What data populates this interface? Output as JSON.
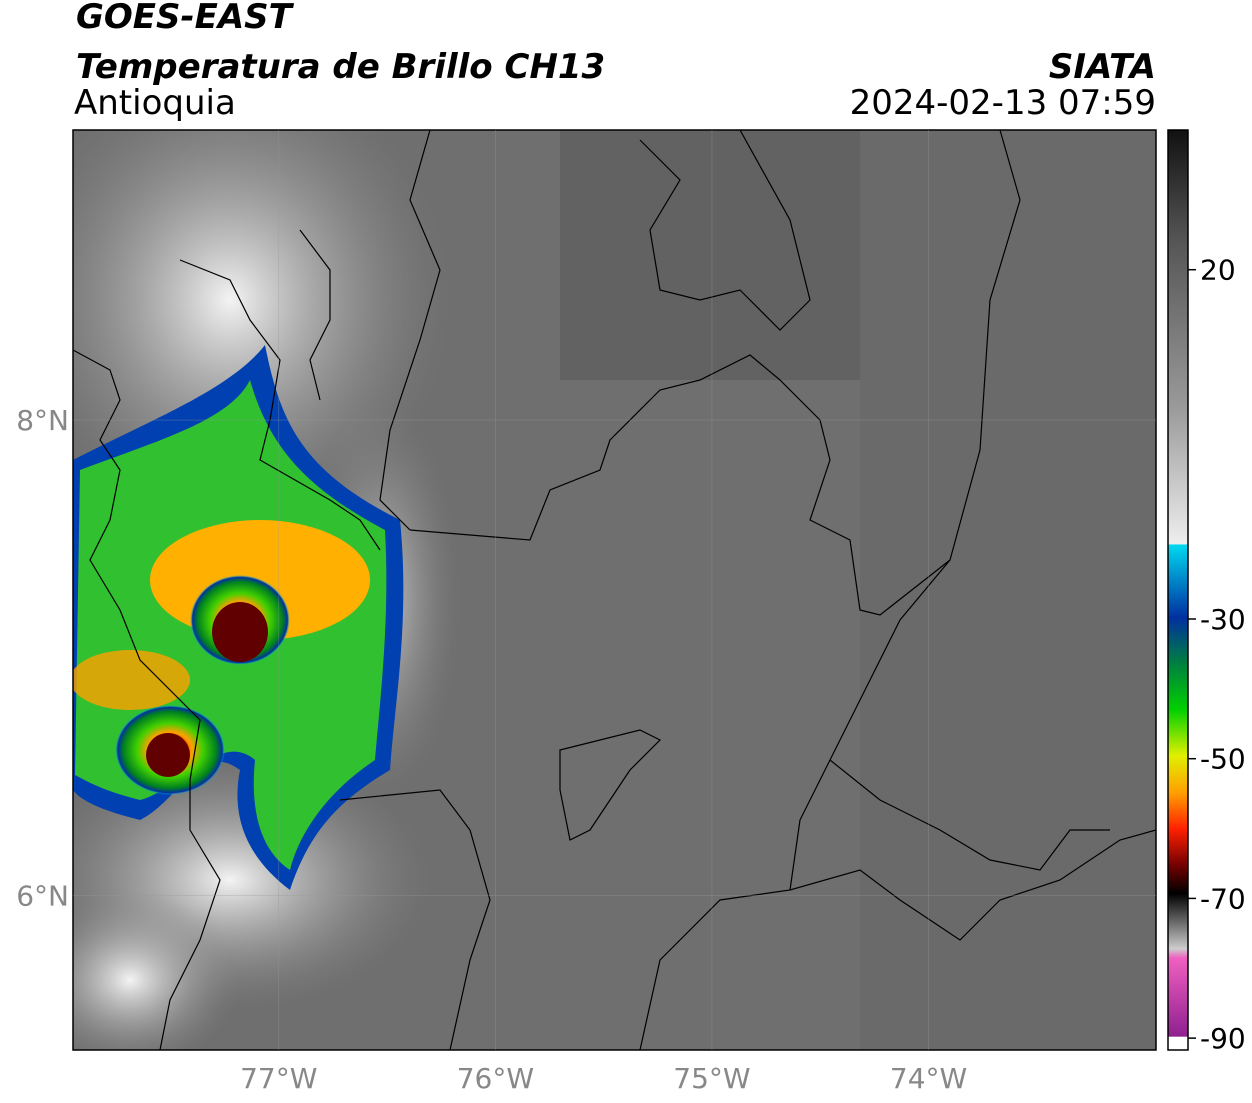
{
  "header": {
    "title": "GOES-EAST",
    "subtitle": "Temperatura de Brillo CH13",
    "region": "Antioquia",
    "source": "SIATA",
    "datetime": "2024-02-13 07:59"
  },
  "map": {
    "lonlim": [
      -77.95,
      -72.95
    ],
    "latlim": [
      5.35,
      9.22
    ],
    "xticks": [
      {
        "value": -77,
        "label": "77°W"
      },
      {
        "value": -76,
        "label": "76°W"
      },
      {
        "value": -75,
        "label": "75°W"
      },
      {
        "value": -74,
        "label": "74°W"
      }
    ],
    "yticks": [
      {
        "value": 8,
        "label": "8°N"
      },
      {
        "value": 6,
        "label": "6°N"
      }
    ]
  },
  "colorbar": {
    "lim": [
      -91.7,
      40
    ],
    "ticks": [
      20,
      -30,
      -50,
      -70,
      -90
    ]
  }
}
